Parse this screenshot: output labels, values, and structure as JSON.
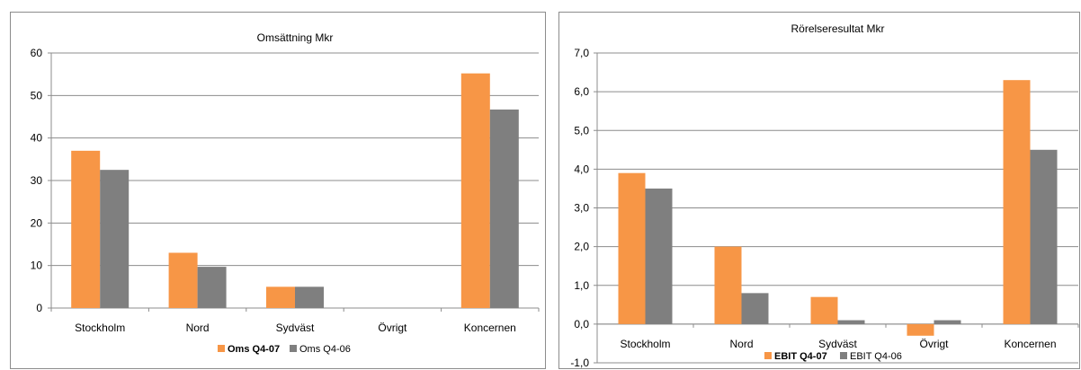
{
  "chart_data": [
    {
      "type": "bar",
      "title": "Omsättning Mkr",
      "categories": [
        "Stockholm",
        "Nord",
        "Sydväst",
        "Övrigt",
        "Koncernen"
      ],
      "series": [
        {
          "name": "Oms Q4-07",
          "values": [
            37.0,
            13.0,
            5.0,
            0.0,
            55.2
          ],
          "color": "#F79646",
          "bold": true
        },
        {
          "name": "Oms Q4-06",
          "values": [
            32.5,
            9.7,
            5.0,
            0.0,
            46.7
          ],
          "color": "#7F7F7F",
          "bold": false
        }
      ],
      "ylim": [
        0,
        60
      ],
      "yticks": [
        0,
        10,
        20,
        30,
        40,
        50,
        60
      ],
      "ytick_labels": [
        "0",
        "10",
        "20",
        "30",
        "40",
        "50",
        "60"
      ],
      "grid": true,
      "legend_position": "bottom"
    },
    {
      "type": "bar",
      "title": "Rörelseresultat Mkr",
      "categories": [
        "Stockholm",
        "Nord",
        "Sydväst",
        "Övrigt",
        "Koncernen"
      ],
      "series": [
        {
          "name": "EBIT Q4-07",
          "values": [
            3.9,
            2.0,
            0.7,
            -0.3,
            6.3
          ],
          "color": "#F79646",
          "bold": true
        },
        {
          "name": "EBIT Q4-06",
          "values": [
            3.5,
            0.8,
            0.1,
            0.1,
            4.5
          ],
          "color": "#7F7F7F",
          "bold": false
        }
      ],
      "ylim": [
        -1,
        7
      ],
      "yticks": [
        -1,
        0,
        1,
        2,
        3,
        4,
        5,
        6,
        7
      ],
      "ytick_labels": [
        "-1,0",
        "0,0",
        "1,0",
        "2,0",
        "3,0",
        "4,0",
        "5,0",
        "6,0",
        "7,0"
      ],
      "grid": true,
      "legend_position": "bottom"
    }
  ]
}
